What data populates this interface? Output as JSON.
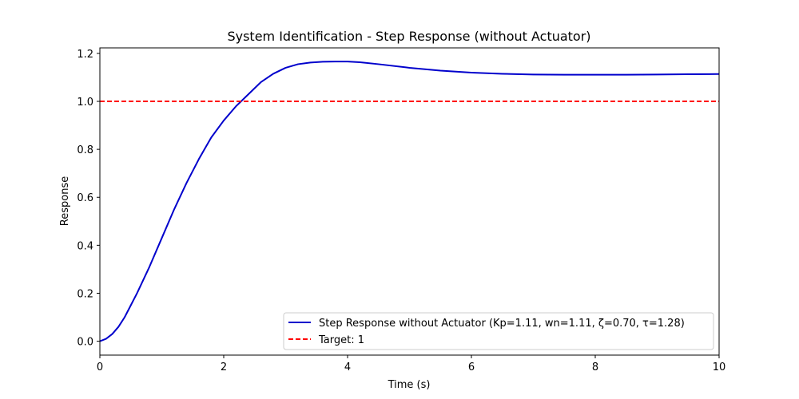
{
  "chart_data": {
    "type": "line",
    "title": "System Identification - Step Response (without Actuator)",
    "xlabel": "Time (s)",
    "ylabel": "Response",
    "xlim": [
      0,
      10
    ],
    "ylim": [
      -0.058,
      1.223
    ],
    "xticks": [
      0,
      2,
      4,
      6,
      8,
      10
    ],
    "xtick_labels": [
      "0",
      "2",
      "4",
      "6",
      "8",
      "10"
    ],
    "yticks": [
      0.0,
      0.2,
      0.4,
      0.6,
      0.8,
      1.0,
      1.2
    ],
    "ytick_labels": [
      "0.0",
      "0.2",
      "0.4",
      "0.6",
      "0.8",
      "1.0",
      "1.2"
    ],
    "grid": false,
    "legend_position": "lower-right",
    "series": [
      {
        "name": "Step Response without Actuator (Kp=1.11, wn=1.11, ζ=0.70, τ=1.28)",
        "color": "#0000cc",
        "style": "solid",
        "x": [
          0,
          0.1,
          0.2,
          0.3,
          0.4,
          0.5,
          0.6,
          0.8,
          1.0,
          1.2,
          1.4,
          1.6,
          1.8,
          2.0,
          2.2,
          2.4,
          2.6,
          2.8,
          3.0,
          3.2,
          3.4,
          3.6,
          3.8,
          4.0,
          4.2,
          4.5,
          5.0,
          5.5,
          6.0,
          6.5,
          7.0,
          7.5,
          8.0,
          8.5,
          9.0,
          9.5,
          10.0
        ],
        "y": [
          0.0,
          0.01,
          0.03,
          0.06,
          0.1,
          0.15,
          0.2,
          0.31,
          0.43,
          0.55,
          0.66,
          0.76,
          0.85,
          0.92,
          0.98,
          1.03,
          1.08,
          1.115,
          1.14,
          1.155,
          1.162,
          1.165,
          1.166,
          1.166,
          1.163,
          1.155,
          1.14,
          1.128,
          1.12,
          1.115,
          1.112,
          1.111,
          1.111,
          1.111,
          1.112,
          1.113,
          1.114
        ]
      },
      {
        "name": "Target: 1",
        "color": "#ff0000",
        "style": "dashed",
        "x": [
          0,
          10
        ],
        "y": [
          1,
          1
        ]
      }
    ]
  }
}
